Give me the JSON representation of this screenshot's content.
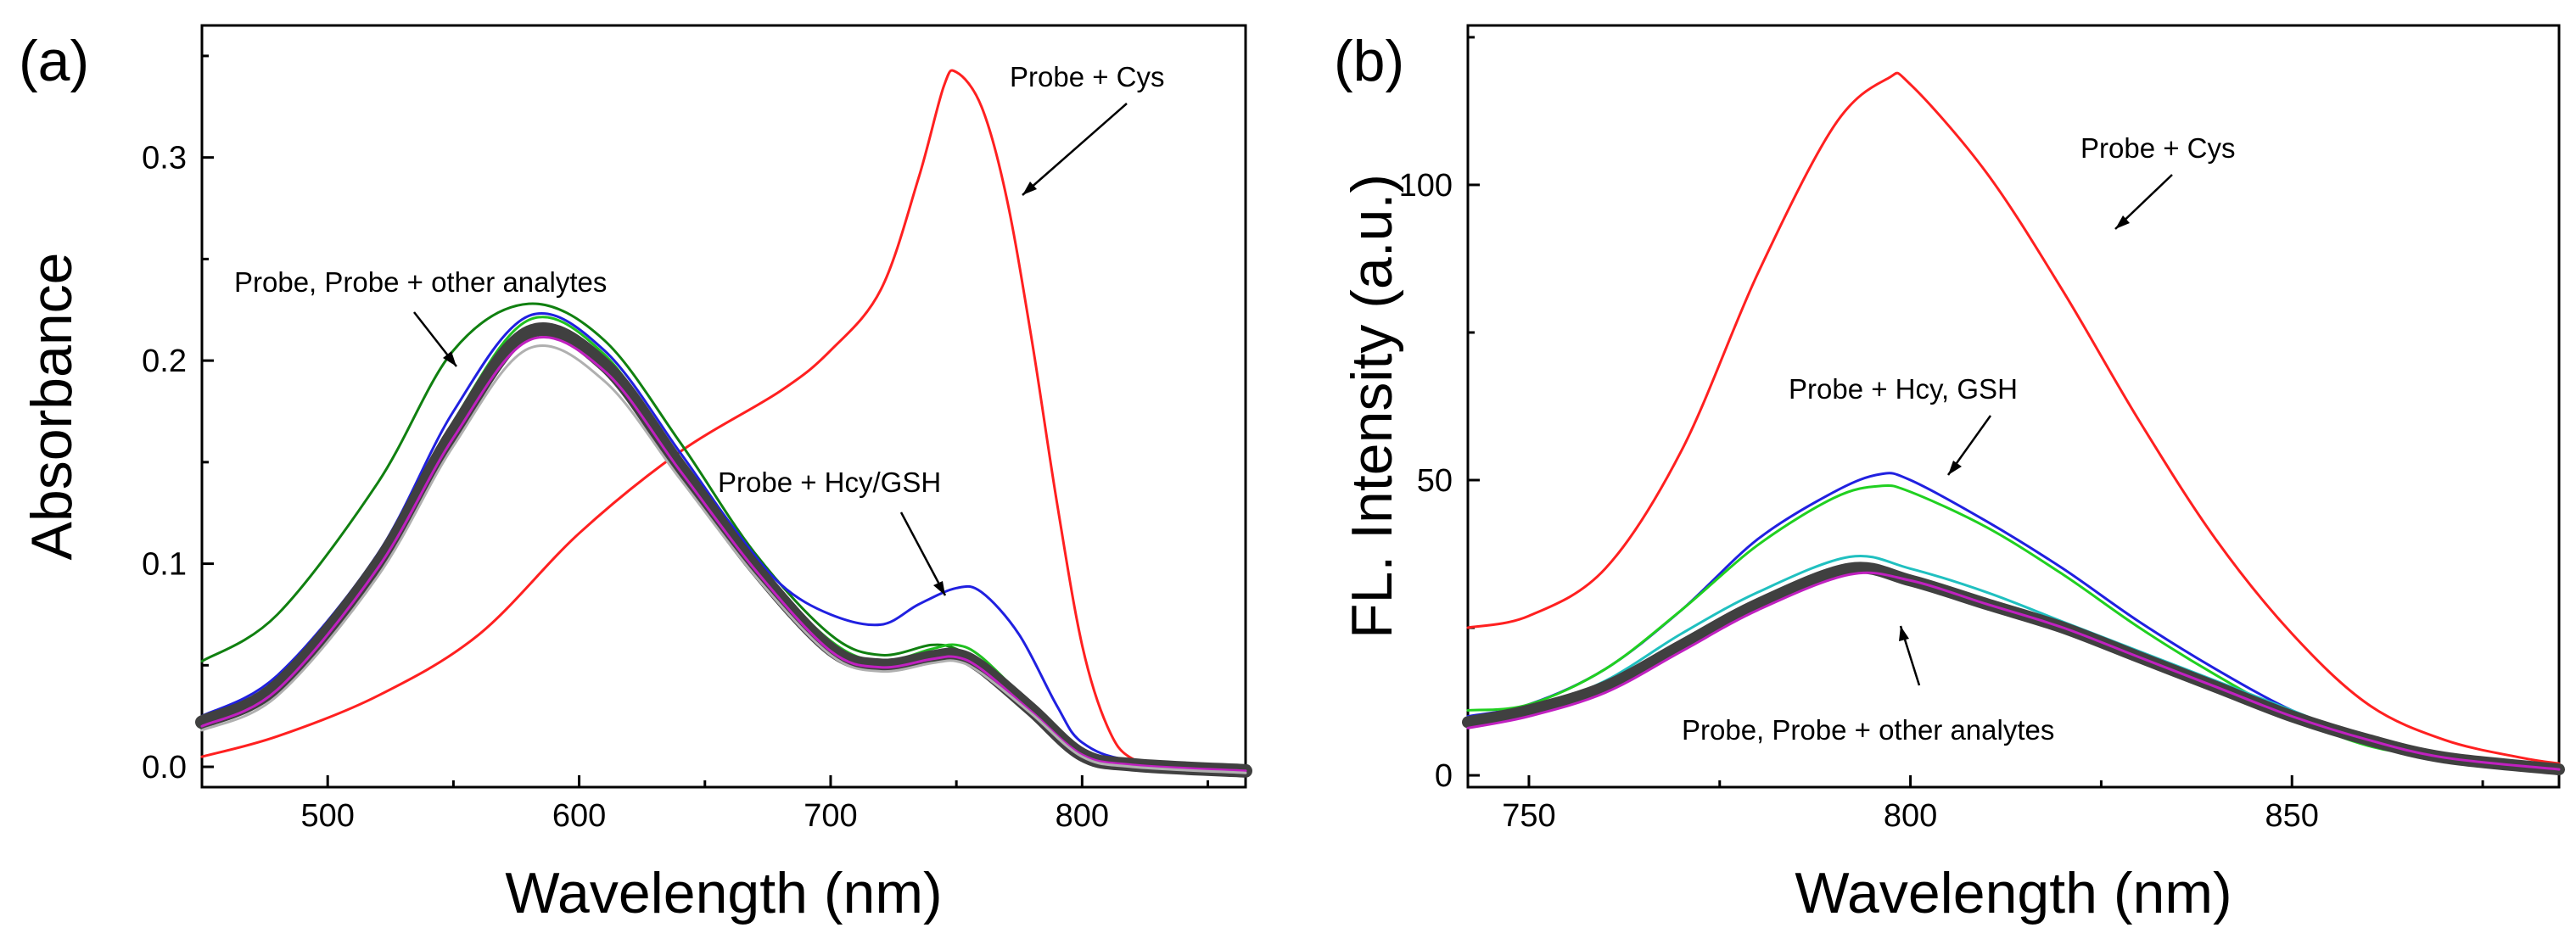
{
  "chart_data": [
    {
      "type": "line",
      "panel_label": "(a)",
      "xlabel": "Wavelength (nm)",
      "ylabel": "Absorbance",
      "xlim": [
        450,
        865
      ],
      "ylim": [
        -0.01,
        0.365
      ],
      "xticks": [
        500,
        600,
        700,
        800
      ],
      "yticks": [
        0.0,
        0.1,
        0.2,
        0.3
      ],
      "ytick_labels": [
        "0.0",
        "0.1",
        "0.2",
        "0.3"
      ],
      "series": [
        {
          "name": "Probe + Cys",
          "color": "#ff2020",
          "width": 3,
          "x": [
            450,
            480,
            520,
            560,
            600,
            640,
            680,
            700,
            720,
            735,
            745,
            750,
            760,
            770,
            780,
            790,
            800,
            810,
            820,
            840,
            865
          ],
          "y": [
            0.005,
            0.015,
            0.035,
            0.065,
            0.115,
            0.155,
            0.185,
            0.205,
            0.235,
            0.29,
            0.335,
            0.342,
            0.325,
            0.28,
            0.21,
            0.13,
            0.06,
            0.02,
            0.004,
            0.0,
            0.0
          ]
        },
        {
          "name": "Probe + other analytes (green)",
          "color": "#108010",
          "width": 3,
          "x": [
            450,
            480,
            520,
            550,
            580,
            610,
            640,
            670,
            700,
            720,
            740,
            750,
            760,
            780,
            800,
            820,
            865
          ],
          "y": [
            0.052,
            0.075,
            0.14,
            0.205,
            0.228,
            0.21,
            0.16,
            0.105,
            0.065,
            0.055,
            0.06,
            0.058,
            0.05,
            0.03,
            0.008,
            0.002,
            0.0
          ]
        },
        {
          "name": "Probe + Hcy/GSH",
          "color": "#2020e0",
          "width": 3,
          "x": [
            450,
            480,
            520,
            550,
            580,
            610,
            640,
            660,
            680,
            700,
            720,
            735,
            750,
            760,
            775,
            790,
            800,
            820,
            865
          ],
          "y": [
            0.025,
            0.045,
            0.105,
            0.175,
            0.222,
            0.205,
            0.155,
            0.12,
            0.09,
            0.075,
            0.07,
            0.08,
            0.088,
            0.086,
            0.065,
            0.03,
            0.012,
            0.003,
            0.0
          ]
        },
        {
          "name": "Probe + Hcy/GSH (green)",
          "color": "#20c020",
          "width": 3,
          "x": [
            450,
            480,
            520,
            550,
            580,
            610,
            640,
            670,
            700,
            720,
            740,
            750,
            760,
            780,
            800,
            820,
            865
          ],
          "y": [
            0.023,
            0.043,
            0.102,
            0.17,
            0.22,
            0.203,
            0.15,
            0.1,
            0.062,
            0.052,
            0.058,
            0.06,
            0.054,
            0.03,
            0.007,
            0.001,
            0.0
          ]
        },
        {
          "name": "Probe, Probe + other analytes",
          "color": "#404040",
          "width": 16,
          "x": [
            450,
            480,
            520,
            550,
            580,
            610,
            640,
            670,
            700,
            720,
            740,
            750,
            760,
            780,
            800,
            820,
            865
          ],
          "y": [
            0.022,
            0.04,
            0.1,
            0.165,
            0.214,
            0.198,
            0.148,
            0.098,
            0.058,
            0.05,
            0.054,
            0.055,
            0.049,
            0.028,
            0.006,
            0.001,
            -0.002
          ]
        },
        {
          "name": "Probe + other analytes (magenta)",
          "color": "#c020c0",
          "width": 3,
          "x": [
            450,
            480,
            520,
            550,
            580,
            610,
            640,
            670,
            700,
            720,
            740,
            750,
            760,
            780,
            800,
            820,
            865
          ],
          "y": [
            0.02,
            0.038,
            0.098,
            0.162,
            0.21,
            0.195,
            0.146,
            0.097,
            0.057,
            0.049,
            0.053,
            0.054,
            0.048,
            0.027,
            0.006,
            0.001,
            -0.002
          ]
        },
        {
          "name": "Probe + other analytes (gray)",
          "color": "#b0b0b0",
          "width": 3,
          "x": [
            450,
            480,
            520,
            550,
            580,
            610,
            640,
            670,
            700,
            720,
            740,
            750,
            760,
            780,
            800,
            820,
            865
          ],
          "y": [
            0.018,
            0.035,
            0.094,
            0.158,
            0.206,
            0.19,
            0.142,
            0.094,
            0.055,
            0.047,
            0.051,
            0.052,
            0.046,
            0.026,
            0.005,
            0.0,
            -0.003
          ]
        }
      ],
      "annotations": [
        {
          "text": "Probe + Cys"
        },
        {
          "text": "Probe, Probe + other analytes"
        },
        {
          "text": "Probe + Hcy/GSH"
        }
      ]
    },
    {
      "type": "line",
      "panel_label": "(b)",
      "xlabel": "Wavelength (nm)",
      "ylabel": "FL. Intensity (a.u.)",
      "xlim": [
        742,
        885
      ],
      "ylim": [
        -2,
        127
      ],
      "xticks": [
        750,
        800,
        850
      ],
      "yticks": [
        0,
        50,
        100
      ],
      "ytick_labels": [
        "0",
        "50",
        "100"
      ],
      "series": [
        {
          "name": "Probe + Cys",
          "color": "#ff2020",
          "width": 3,
          "x": [
            742,
            750,
            760,
            770,
            780,
            790,
            797,
            800,
            810,
            820,
            830,
            840,
            850,
            860,
            870,
            880,
            885
          ],
          "y": [
            25,
            27,
            35,
            55,
            85,
            110,
            118,
            117,
            102,
            82,
            60,
            40,
            24,
            12,
            6,
            3,
            2
          ]
        },
        {
          "name": "Probe + Hcy, GSH (blue)",
          "color": "#2020e0",
          "width": 3,
          "x": [
            742,
            750,
            760,
            770,
            780,
            790,
            796,
            800,
            810,
            820,
            830,
            840,
            850,
            860,
            870,
            885
          ],
          "y": [
            10,
            12,
            18,
            28,
            40,
            48,
            51,
            50,
            43,
            35,
            26,
            18,
            11,
            6,
            3,
            1
          ]
        },
        {
          "name": "Probe + Hcy, GSH (green)",
          "color": "#20d020",
          "width": 3,
          "x": [
            742,
            750,
            760,
            770,
            780,
            790,
            796,
            800,
            810,
            820,
            830,
            840,
            850,
            860,
            870,
            885
          ],
          "y": [
            11,
            12,
            18,
            28,
            39,
            47,
            49,
            48,
            42,
            34,
            25,
            17,
            10,
            5,
            3,
            1
          ]
        },
        {
          "name": "Probe + other analytes (cyan)",
          "color": "#20c0c0",
          "width": 3,
          "x": [
            742,
            750,
            760,
            770,
            780,
            792,
            800,
            810,
            820,
            830,
            840,
            850,
            860,
            870,
            885
          ],
          "y": [
            9,
            11,
            16,
            24,
            31,
            37,
            35,
            31,
            26,
            21,
            16,
            11,
            6,
            3,
            1
          ]
        },
        {
          "name": "Probe, Probe + other analytes",
          "color": "#404040",
          "width": 14,
          "x": [
            742,
            750,
            760,
            770,
            780,
            792,
            800,
            810,
            820,
            830,
            840,
            850,
            860,
            870,
            885
          ],
          "y": [
            9,
            11,
            15,
            22,
            29,
            35,
            33,
            29,
            25,
            20,
            15,
            10,
            6,
            3,
            1
          ]
        },
        {
          "name": "Probe + other analytes (magenta)",
          "color": "#c020c0",
          "width": 3,
          "x": [
            742,
            750,
            760,
            770,
            780,
            792,
            800,
            810,
            820,
            830,
            840,
            850,
            860,
            870,
            885
          ],
          "y": [
            8,
            10,
            14,
            21,
            28,
            34,
            33,
            29,
            25,
            20,
            15,
            10,
            6,
            3,
            1
          ]
        }
      ],
      "annotations": [
        {
          "text": "Probe + Cys"
        },
        {
          "text": "Probe + Hcy, GSH"
        },
        {
          "text": "Probe, Probe + other analytes"
        }
      ]
    }
  ]
}
